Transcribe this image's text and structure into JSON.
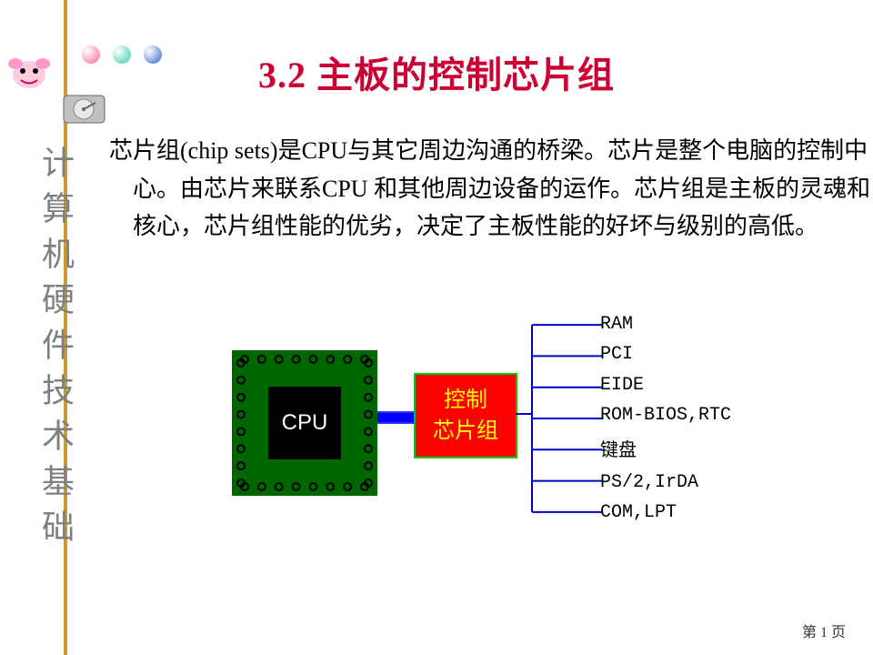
{
  "title": {
    "text": "3.2 主板的控制芯片组",
    "color": "#cc0033",
    "fontsize": 40
  },
  "body": {
    "text": "芯片组(chip sets)是CPU与其它周边沟通的桥梁。芯片是整个电脑的控制中心。由芯片来联系CPU 和其他周边设备的运作。芯片组是主板的灵魂和核心，芯片组性能的优劣，决定了主板性能的好坏与级别的高低。",
    "fontsize": 26
  },
  "vertical_label": {
    "text": "计算机硬件技术基础",
    "fontsize": 36
  },
  "bullets": [
    "#ff6699",
    "#33ccaa",
    "#3366cc"
  ],
  "diagram": {
    "type": "flowchart",
    "cpu": {
      "label": "CPU",
      "outer_color": "#006600",
      "inner_color": "#000000",
      "text_color": "#ffffff",
      "pin_color": "#000000",
      "pins_per_side": 8,
      "label_fontsize": 24
    },
    "chipset": {
      "line1": "控制",
      "line2": "芯片组",
      "bg_color": "#ff0000",
      "border_color": "#00cc00",
      "text_color": "#ffff00",
      "label_fontsize": 24
    },
    "bus_color": "#0000ff",
    "line_color": "#0000cc",
    "outputs": [
      "RAM",
      "PCI",
      "EIDE",
      "ROM-BIOS,RTC",
      "键盘",
      "PS/2,IrDA",
      "COM,LPT"
    ],
    "output_fontsize": 20
  },
  "page_number": "第 1 页"
}
